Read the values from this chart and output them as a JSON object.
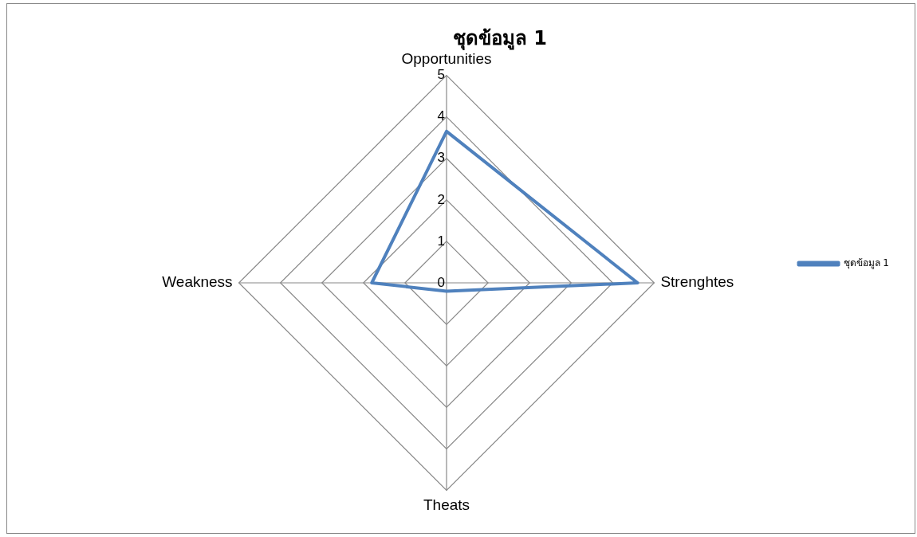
{
  "chart_data": {
    "type": "radar",
    "title": "ชุดข้อมูล 1",
    "categories": [
      "Opportunities",
      "Strenghtes",
      "Theats",
      "Weakness"
    ],
    "series": [
      {
        "name": "ชุดข้อมูล 1",
        "color": "#4f81bd",
        "values": [
          3.65,
          4.6,
          0.2,
          1.8
        ]
      }
    ],
    "ylim": [
      0,
      5
    ],
    "yticks": [
      0,
      1,
      2,
      3,
      4,
      5
    ],
    "grid": true,
    "legend": "right",
    "marker": "none"
  }
}
